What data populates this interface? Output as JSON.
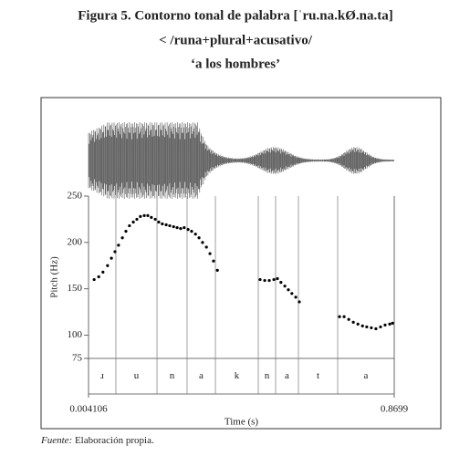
{
  "header": {
    "title": "Figura 5. Contorno tonal de palabra [ˈru.na.kØ.na.ta]",
    "subtitle": "< /runa+plural+acusativo/",
    "gloss": "‘a los hombres’"
  },
  "chart_data": {
    "type": "scatter",
    "xlabel": "Time (s)",
    "ylabel": "Pitch (Hz)",
    "color": "#000000",
    "xlim": [
      0.004106,
      0.8699
    ],
    "xticks": [
      0.004106,
      0.8699
    ],
    "ylim": [
      75,
      250
    ],
    "yticks": [
      75,
      100,
      150,
      200,
      250
    ],
    "x": [
      0.02,
      0.033,
      0.045,
      0.058,
      0.069,
      0.079,
      0.089,
      0.1,
      0.11,
      0.12,
      0.131,
      0.141,
      0.151,
      0.162,
      0.172,
      0.182,
      0.193,
      0.203,
      0.213,
      0.224,
      0.234,
      0.245,
      0.255,
      0.265,
      0.275,
      0.286,
      0.296,
      0.307,
      0.317,
      0.327,
      0.338,
      0.348,
      0.358,
      0.369,
      0.49,
      0.503,
      0.516,
      0.529,
      0.539,
      0.549,
      0.56,
      0.57,
      0.58,
      0.591,
      0.601,
      0.715,
      0.728,
      0.741,
      0.754,
      0.767,
      0.78,
      0.792,
      0.805,
      0.818,
      0.831,
      0.844,
      0.857,
      0.865
    ],
    "values": [
      160,
      163,
      168,
      175,
      183,
      190,
      197,
      205,
      212,
      218,
      222,
      225,
      228,
      229,
      229,
      227,
      225,
      222,
      220,
      219,
      218,
      217,
      216,
      215,
      216,
      214,
      212,
      209,
      205,
      200,
      195,
      188,
      180,
      170,
      160,
      159,
      159,
      160,
      161,
      157,
      153,
      149,
      145,
      141,
      136,
      120,
      120,
      117,
      114,
      112,
      110,
      109,
      108,
      107,
      109,
      111,
      112,
      113
    ],
    "segments": {
      "labels": [
        "ɹ",
        "u",
        "n",
        "a",
        "k",
        "n",
        "a",
        "t",
        "a"
      ],
      "bounds": [
        0.004106,
        0.0816,
        0.198,
        0.2832,
        0.3634,
        0.4848,
        0.5339,
        0.5985,
        0.7097,
        0.8699
      ]
    }
  },
  "footer": {
    "source_label": "Fuente:",
    "source_text": "Elaboración propia."
  }
}
